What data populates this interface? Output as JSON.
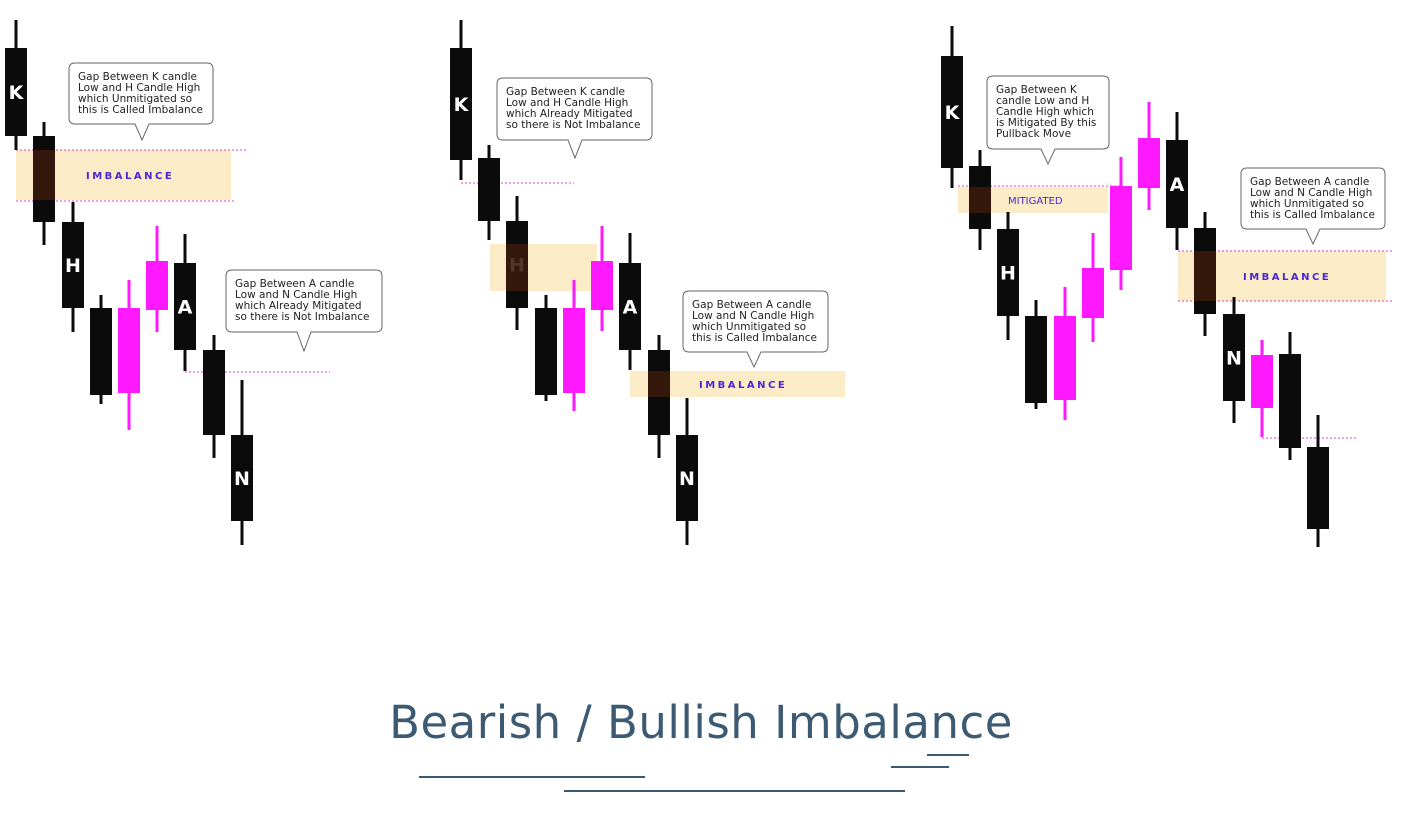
{
  "title": "Bearish / Bullish Imbalance",
  "colors": {
    "bear": "#0b0b0b",
    "bull": "#ff19ff",
    "zone": "#fcebc7",
    "zone_overlap": "#3a1a0c",
    "dotted": "#e040c8",
    "label": "#4b25d6",
    "title": "#3d5a73"
  },
  "panels": [
    {
      "candle_letters": [
        "K",
        "H",
        "A",
        "N"
      ],
      "zone_labels": [
        "IMBALANCE"
      ],
      "callouts": [
        {
          "lines": [
            "Gap Between K candle",
            "Low and H Candle High",
            "which Unmitigated  so",
            "this is Called Imbalance"
          ]
        },
        {
          "lines": [
            "Gap Between A candle",
            "Low and N Candle High",
            "which Already Mitigated",
            "so there is Not Imbalance"
          ]
        }
      ]
    },
    {
      "candle_letters": [
        "K",
        "H",
        "A",
        "N"
      ],
      "zone_labels": [
        "IMBALANCE"
      ],
      "callouts": [
        {
          "lines": [
            "Gap Between K candle",
            "Low and H Candle High",
            "which Already Mitigated",
            "so there is Not Imbalance"
          ]
        },
        {
          "lines": [
            "Gap Between A candle",
            "Low and N Candle High",
            "which Unmitigated  so",
            "this is Called Imbalance"
          ]
        }
      ]
    },
    {
      "candle_letters": [
        "K",
        "H",
        "A",
        "N"
      ],
      "zone_labels": [
        "MITIGATED",
        "IMBALANCE"
      ],
      "callouts": [
        {
          "lines": [
            "Gap Between K",
            "candle Low and H",
            "Candle High which",
            "is Mitigated By this",
            "Pullback Move"
          ]
        },
        {
          "lines": [
            "Gap Between A candle",
            "Low and N Candle High",
            "which Unmitigated  so",
            "this is Called Imbalance"
          ]
        }
      ]
    }
  ]
}
